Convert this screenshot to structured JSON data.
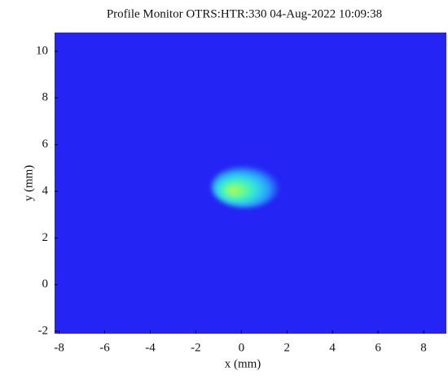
{
  "chart_data": {
    "type": "heatmap",
    "title": "Profile Monitor OTRS:HTR:330 04-Aug-2022 10:09:38",
    "x_label": "x (mm)",
    "y_label": "y (mm)",
    "xlim": [
      -8.2,
      9.0
    ],
    "xticks": [
      -8,
      -6,
      -4,
      -2,
      0,
      2,
      4,
      6,
      8
    ],
    "ylim": [
      -2.1,
      10.8
    ],
    "yticks": [
      -2,
      0,
      2,
      4,
      6,
      8,
      10
    ],
    "background_color": "#2424f4",
    "spot": {
      "x": 0.2,
      "y": 4.2,
      "rx": 1.5,
      "ry": 0.9
    },
    "colors": [
      "#c8f040",
      "#60ff90",
      "#30e0e0",
      "#2aa0ff",
      "#2424f4"
    ]
  }
}
